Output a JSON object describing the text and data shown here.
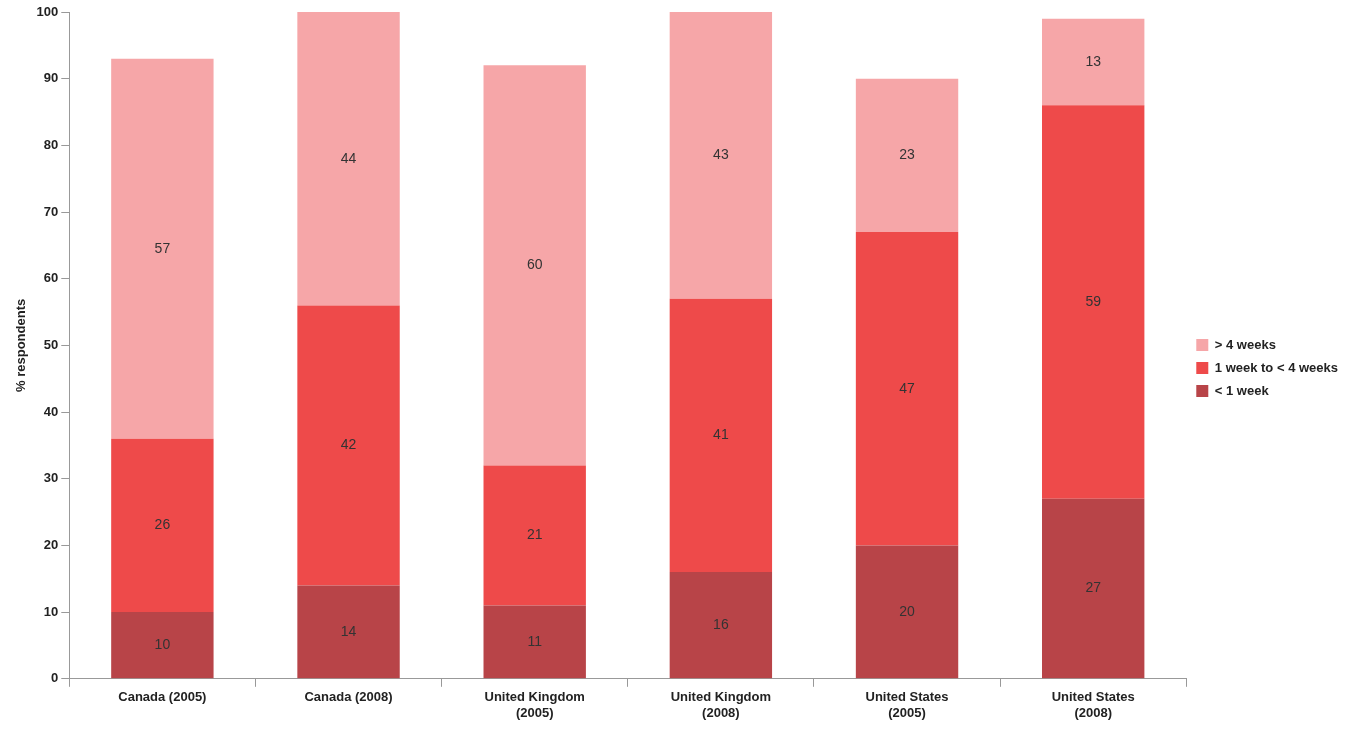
{
  "chart_data": {
    "type": "bar",
    "stacked": true,
    "ylabel": "% respondents",
    "categories": [
      "Canada (2005)",
      "Canada (2008)",
      "United Kingdom (2005)",
      "United Kingdom (2008)",
      "United States (2005)",
      "United States (2008)"
    ],
    "series": [
      {
        "name": "< 1 week",
        "color": "#b84448",
        "values": [
          10,
          14,
          11,
          16,
          20,
          27
        ]
      },
      {
        "name": "1 week to < 4 weeks",
        "color": "#ee4a4a",
        "values": [
          26,
          42,
          21,
          41,
          47,
          59
        ]
      },
      {
        "name": "> 4 weeks",
        "color": "#f6a6a8",
        "values": [
          57,
          44,
          60,
          43,
          23,
          13
        ]
      }
    ],
    "ylim": [
      0,
      100
    ],
    "yticks": [
      0,
      10,
      20,
      30,
      40,
      50,
      60,
      70,
      80,
      90,
      100
    ],
    "grid": false,
    "legend": "right",
    "data_labels": true
  }
}
